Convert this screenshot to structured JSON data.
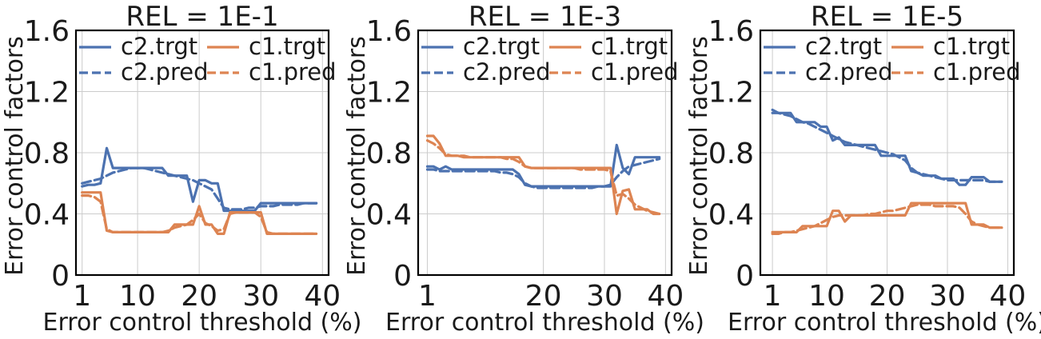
{
  "figure": {
    "colors": {
      "c2": "#4c72b0",
      "c1": "#dd8452",
      "grid": "#cccccc",
      "frame": "#000000"
    }
  },
  "chart_data": [
    {
      "type": "line",
      "title": "REL = 1E-1",
      "xlabel": "Error control threshold (%)",
      "ylabel": "Error control factors",
      "xlim": [
        0,
        41
      ],
      "ylim": [
        0,
        1.6
      ],
      "xticks": [
        1,
        10,
        20,
        30,
        40
      ],
      "xtick_labels": [
        "1",
        "10",
        "20",
        "30",
        "40"
      ],
      "yticks": [
        0,
        0.4,
        0.8,
        1.2,
        1.6
      ],
      "ytick_labels": [
        "0",
        "0.4",
        "0.8",
        "1.2",
        "1.6"
      ],
      "grid": true,
      "legend": {
        "position": "top",
        "columns": 2
      },
      "x": [
        1,
        2,
        3,
        4,
        5,
        6,
        7,
        8,
        9,
        10,
        11,
        12,
        13,
        14,
        15,
        16,
        17,
        18,
        19,
        20,
        21,
        22,
        23,
        24,
        25,
        26,
        27,
        28,
        29,
        30,
        31,
        32,
        33,
        34,
        35,
        36,
        37,
        38,
        39
      ],
      "series": [
        {
          "name": "c2.trgt",
          "color_key": "c2",
          "dash": "solid",
          "values": [
            0.58,
            0.59,
            0.59,
            0.6,
            0.83,
            0.7,
            0.7,
            0.7,
            0.7,
            0.7,
            0.7,
            0.7,
            0.7,
            0.7,
            0.65,
            0.65,
            0.65,
            0.65,
            0.48,
            0.62,
            0.62,
            0.6,
            0.6,
            0.42,
            0.42,
            0.42,
            0.42,
            0.42,
            0.42,
            0.47,
            0.47,
            0.47,
            0.47,
            0.47,
            0.47,
            0.47,
            0.47,
            0.47,
            0.47
          ]
        },
        {
          "name": "c2.pred",
          "color_key": "c2",
          "dash": "dashed",
          "values": [
            0.6,
            0.61,
            0.62,
            0.63,
            0.65,
            0.67,
            0.68,
            0.69,
            0.7,
            0.7,
            0.7,
            0.69,
            0.68,
            0.67,
            0.66,
            0.65,
            0.64,
            0.63,
            0.62,
            0.6,
            0.58,
            0.56,
            0.5,
            0.44,
            0.43,
            0.43,
            0.43,
            0.44,
            0.44,
            0.45,
            0.45,
            0.45,
            0.46,
            0.46,
            0.46,
            0.46,
            0.47,
            0.47,
            0.47
          ]
        },
        {
          "name": "c1.trgt",
          "color_key": "c1",
          "dash": "solid",
          "values": [
            0.54,
            0.54,
            0.54,
            0.54,
            0.29,
            0.28,
            0.28,
            0.28,
            0.28,
            0.28,
            0.28,
            0.28,
            0.28,
            0.28,
            0.28,
            0.33,
            0.33,
            0.33,
            0.33,
            0.45,
            0.33,
            0.33,
            0.27,
            0.27,
            0.41,
            0.41,
            0.41,
            0.41,
            0.41,
            0.41,
            0.27,
            0.27,
            0.27,
            0.27,
            0.27,
            0.27,
            0.27,
            0.27,
            0.27
          ]
        },
        {
          "name": "c1.pred",
          "color_key": "c1",
          "dash": "dashed",
          "values": [
            0.52,
            0.52,
            0.51,
            0.48,
            0.3,
            0.28,
            0.28,
            0.28,
            0.28,
            0.28,
            0.28,
            0.28,
            0.28,
            0.28,
            0.29,
            0.31,
            0.32,
            0.33,
            0.36,
            0.4,
            0.34,
            0.32,
            0.29,
            0.3,
            0.4,
            0.41,
            0.41,
            0.41,
            0.41,
            0.38,
            0.28,
            0.27,
            0.27,
            0.27,
            0.27,
            0.27,
            0.27,
            0.27,
            0.27
          ]
        }
      ]
    },
    {
      "type": "line",
      "title": "REL = 1E-3",
      "xlabel": "Error control threshold (%)",
      "ylabel": "Error control factors",
      "xlim": [
        -0.5,
        41
      ],
      "ylim": [
        0,
        1.6
      ],
      "xticks": [
        1,
        20,
        30,
        40
      ],
      "xtick_labels": [
        "1",
        "20",
        "30",
        "40"
      ],
      "yticks": [
        0,
        0.4,
        0.8,
        1.2,
        1.6
      ],
      "ytick_labels": [
        "0",
        "0.4",
        "0.8",
        "1.2",
        "1.6"
      ],
      "grid": true,
      "legend": {
        "position": "top",
        "columns": 2
      },
      "x": [
        1,
        2,
        3,
        4,
        5,
        6,
        7,
        8,
        9,
        10,
        11,
        12,
        13,
        14,
        15,
        16,
        17,
        18,
        19,
        20,
        21,
        22,
        23,
        24,
        25,
        26,
        27,
        28,
        29,
        30,
        31,
        32,
        33,
        34,
        35,
        36,
        37,
        38,
        39
      ],
      "series": [
        {
          "name": "c2.trgt",
          "color_key": "c2",
          "dash": "solid",
          "values": [
            0.71,
            0.71,
            0.69,
            0.71,
            0.69,
            0.69,
            0.69,
            0.69,
            0.69,
            0.69,
            0.69,
            0.69,
            0.69,
            0.69,
            0.69,
            0.66,
            0.59,
            0.58,
            0.58,
            0.58,
            0.58,
            0.58,
            0.58,
            0.58,
            0.58,
            0.58,
            0.58,
            0.58,
            0.58,
            0.58,
            0.58,
            0.85,
            0.7,
            0.66,
            0.77,
            0.77,
            0.77,
            0.77,
            0.77
          ]
        },
        {
          "name": "c2.pred",
          "color_key": "c2",
          "dash": "dashed",
          "values": [
            0.69,
            0.69,
            0.68,
            0.68,
            0.68,
            0.68,
            0.68,
            0.68,
            0.68,
            0.68,
            0.68,
            0.68,
            0.67,
            0.67,
            0.66,
            0.64,
            0.6,
            0.58,
            0.57,
            0.57,
            0.57,
            0.57,
            0.57,
            0.57,
            0.57,
            0.57,
            0.57,
            0.57,
            0.58,
            0.58,
            0.59,
            0.64,
            0.68,
            0.71,
            0.72,
            0.73,
            0.74,
            0.75,
            0.76
          ]
        },
        {
          "name": "c1.trgt",
          "color_key": "c1",
          "dash": "solid",
          "values": [
            0.91,
            0.91,
            0.86,
            0.78,
            0.78,
            0.78,
            0.77,
            0.77,
            0.77,
            0.77,
            0.77,
            0.77,
            0.77,
            0.77,
            0.77,
            0.77,
            0.71,
            0.7,
            0.7,
            0.7,
            0.7,
            0.7,
            0.7,
            0.7,
            0.7,
            0.7,
            0.7,
            0.7,
            0.7,
            0.7,
            0.7,
            0.4,
            0.55,
            0.56,
            0.43,
            0.43,
            0.43,
            0.4,
            0.4
          ]
        },
        {
          "name": "c1.pred",
          "color_key": "c1",
          "dash": "dashed",
          "values": [
            0.88,
            0.86,
            0.83,
            0.79,
            0.78,
            0.78,
            0.78,
            0.77,
            0.77,
            0.77,
            0.77,
            0.77,
            0.77,
            0.76,
            0.76,
            0.74,
            0.71,
            0.7,
            0.7,
            0.7,
            0.7,
            0.7,
            0.7,
            0.7,
            0.7,
            0.69,
            0.69,
            0.69,
            0.69,
            0.69,
            0.68,
            0.52,
            0.53,
            0.5,
            0.46,
            0.44,
            0.42,
            0.41,
            0.4
          ]
        }
      ]
    },
    {
      "type": "line",
      "title": "REL = 1E-5",
      "xlabel": "Error control threshold (%)",
      "ylabel": "Error control factors",
      "xlim": [
        -1,
        41
      ],
      "ylim": [
        0,
        1.6
      ],
      "xticks": [
        1,
        10,
        20,
        30,
        40
      ],
      "xtick_labels": [
        "1",
        "10",
        "20",
        "30",
        "40"
      ],
      "yticks": [
        0,
        0.4,
        0.8,
        1.2,
        1.6
      ],
      "ytick_labels": [
        "0",
        "0.4",
        "0.8",
        "1.2",
        "1.6"
      ],
      "grid": true,
      "legend": {
        "position": "top",
        "columns": 2
      },
      "x": [
        1,
        2,
        3,
        4,
        5,
        6,
        7,
        8,
        9,
        10,
        11,
        12,
        13,
        14,
        15,
        16,
        17,
        18,
        19,
        20,
        21,
        22,
        23,
        24,
        25,
        26,
        27,
        28,
        29,
        30,
        31,
        32,
        33,
        34,
        35,
        36,
        37,
        38,
        39
      ],
      "series": [
        {
          "name": "c2.trgt",
          "color_key": "c2",
          "dash": "solid",
          "values": [
            1.06,
            1.06,
            1.06,
            1.06,
            1.0,
            1.0,
            1.0,
            1.0,
            0.97,
            0.97,
            0.88,
            0.9,
            0.85,
            0.85,
            0.85,
            0.85,
            0.85,
            0.85,
            0.78,
            0.78,
            0.78,
            0.78,
            0.78,
            0.68,
            0.67,
            0.65,
            0.65,
            0.65,
            0.63,
            0.63,
            0.63,
            0.59,
            0.59,
            0.64,
            0.64,
            0.64,
            0.61,
            0.61,
            0.61
          ]
        },
        {
          "name": "c2.pred",
          "color_key": "c2",
          "dash": "dashed",
          "values": [
            1.08,
            1.06,
            1.05,
            1.04,
            1.02,
            1.0,
            0.99,
            0.97,
            0.95,
            0.93,
            0.91,
            0.89,
            0.87,
            0.86,
            0.85,
            0.84,
            0.83,
            0.82,
            0.81,
            0.8,
            0.79,
            0.77,
            0.75,
            0.7,
            0.67,
            0.66,
            0.65,
            0.64,
            0.63,
            0.62,
            0.62,
            0.62,
            0.62,
            0.62,
            0.62,
            0.62,
            0.61,
            0.61,
            0.61
          ]
        },
        {
          "name": "c1.trgt",
          "color_key": "c1",
          "dash": "solid",
          "values": [
            0.28,
            0.28,
            0.28,
            0.28,
            0.28,
            0.32,
            0.32,
            0.32,
            0.32,
            0.32,
            0.42,
            0.42,
            0.35,
            0.39,
            0.39,
            0.39,
            0.39,
            0.39,
            0.39,
            0.39,
            0.39,
            0.39,
            0.39,
            0.47,
            0.47,
            0.47,
            0.47,
            0.47,
            0.47,
            0.47,
            0.47,
            0.47,
            0.47,
            0.33,
            0.33,
            0.33,
            0.31,
            0.31,
            0.31
          ]
        },
        {
          "name": "c1.pred",
          "color_key": "c1",
          "dash": "dashed",
          "values": [
            0.27,
            0.27,
            0.28,
            0.28,
            0.29,
            0.3,
            0.31,
            0.32,
            0.34,
            0.36,
            0.38,
            0.39,
            0.39,
            0.39,
            0.39,
            0.39,
            0.4,
            0.4,
            0.41,
            0.42,
            0.42,
            0.43,
            0.44,
            0.45,
            0.46,
            0.46,
            0.46,
            0.45,
            0.45,
            0.45,
            0.45,
            0.44,
            0.4,
            0.35,
            0.33,
            0.32,
            0.31,
            0.31,
            0.31
          ]
        }
      ]
    }
  ]
}
